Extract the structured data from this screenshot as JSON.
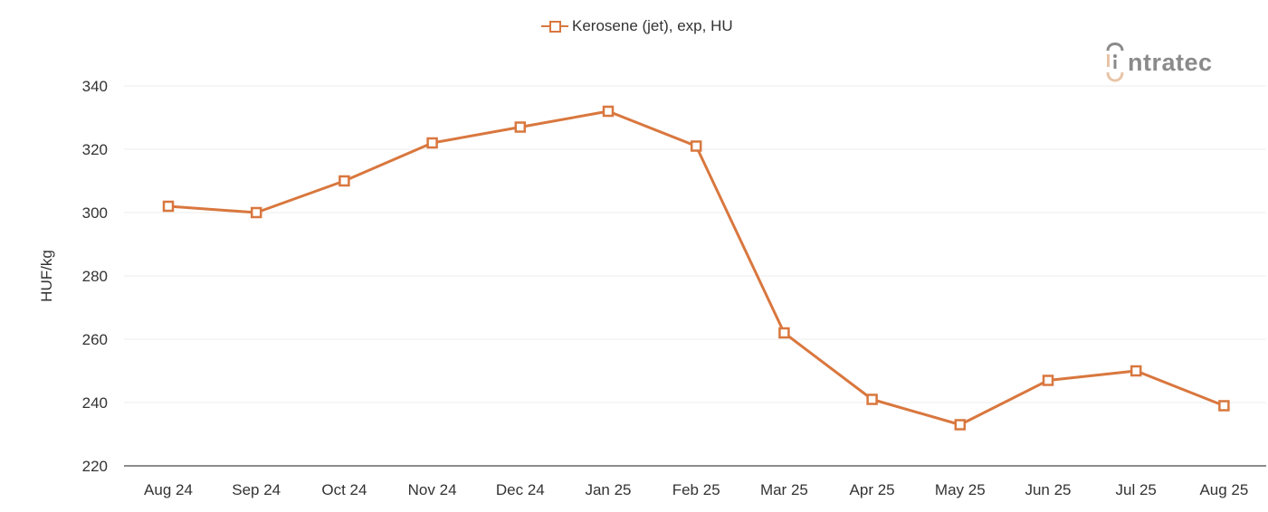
{
  "legend": {
    "label": "Kerosene (jet), exp, HU",
    "color": "#d9773e"
  },
  "logo": {
    "text": "ntratec",
    "full_name": "intratec",
    "icon_color": "#e8c4a6",
    "text_color": "#8a8a8a"
  },
  "axis": {
    "ylabel": "HUF/kg",
    "yticks": [
      "340",
      "320",
      "300",
      "280",
      "260",
      "240",
      "220"
    ]
  },
  "chart_data": {
    "type": "line",
    "title": "",
    "xlabel": "",
    "ylabel": "HUF/kg",
    "ylim": [
      220,
      340
    ],
    "yticks": [
      220,
      240,
      260,
      280,
      300,
      320,
      340
    ],
    "grid": true,
    "legend_position": "top-center",
    "categories": [
      "Aug 24",
      "Sep 24",
      "Oct 24",
      "Nov 24",
      "Dec 24",
      "Jan 25",
      "Feb 25",
      "Mar 25",
      "Apr 25",
      "May 25",
      "Jun 25",
      "Jul 25",
      "Aug 25"
    ],
    "series": [
      {
        "name": "Kerosene (jet), exp, HU",
        "color": "#d9773e",
        "marker": "hollow-square",
        "values": [
          302,
          300,
          310,
          322,
          327,
          332,
          321,
          262,
          241,
          233,
          247,
          250,
          239
        ]
      }
    ]
  }
}
